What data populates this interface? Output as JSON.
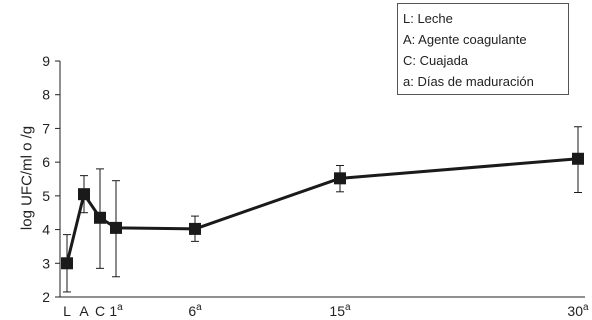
{
  "chart_data": {
    "type": "line",
    "legend": [
      "L: Leche",
      "A: Agente coagulante",
      "C: Cuajada",
      "a: Días de maduración"
    ],
    "legend_position": "top-right",
    "xlabel": "",
    "ylabel": "log UFC/ml o /g",
    "ylim": [
      2,
      9
    ],
    "yticks": [
      2,
      3,
      4,
      5,
      6,
      7,
      8,
      9
    ],
    "xticks": [
      {
        "base": "L",
        "sup": ""
      },
      {
        "base": "A",
        "sup": ""
      },
      {
        "base": "C",
        "sup": ""
      },
      {
        "base": "1",
        "sup": "a"
      },
      {
        "base": "6",
        "sup": "a"
      },
      {
        "base": "15",
        "sup": "a"
      },
      {
        "base": "30",
        "sup": "a"
      }
    ],
    "series": [
      {
        "points": [
          {
            "x": "L",
            "y": 3.0,
            "err_low": 2.15,
            "err_high": 3.85
          },
          {
            "x": "A",
            "y": 5.05,
            "err_low": 4.5,
            "err_high": 5.6
          },
          {
            "x": "C",
            "y": 4.35,
            "err_low": 2.85,
            "err_high": 5.8
          },
          {
            "x": "1",
            "y": 4.05,
            "err_low": 2.6,
            "err_high": 5.45
          },
          {
            "x": "6",
            "y": 4.02,
            "err_low": 3.65,
            "err_high": 4.4
          },
          {
            "x": "15",
            "y": 5.52,
            "err_low": 5.12,
            "err_high": 5.9
          },
          {
            "x": "30",
            "y": 6.1,
            "err_low": 5.1,
            "err_high": 7.05
          }
        ],
        "color": "#1a1a1a",
        "marker": "square"
      }
    ],
    "grid": false
  }
}
